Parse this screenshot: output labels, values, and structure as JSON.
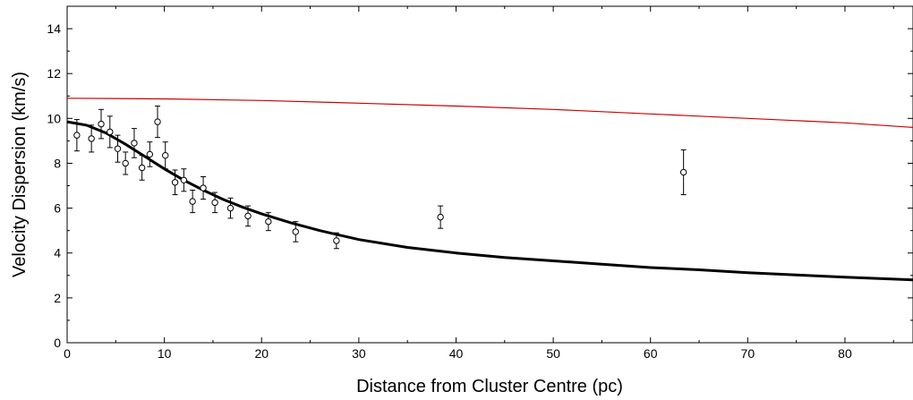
{
  "chart_data": {
    "type": "scatter",
    "title": "",
    "xlabel": "Distance from Cluster Centre (pc)",
    "ylabel": "Velocity Dispersion (km/s)",
    "xlim": [
      0,
      87
    ],
    "ylim": [
      0,
      15
    ],
    "xticks": [
      0,
      10,
      20,
      30,
      40,
      50,
      60,
      70,
      80
    ],
    "yticks": [
      0,
      2,
      4,
      6,
      8,
      10,
      12,
      14
    ],
    "grid": false,
    "legend": "none",
    "colors": {
      "points": "#000000",
      "black_curve": "#000000",
      "red_curve": "#cc0000"
    },
    "series": [
      {
        "kind": "points_with_errorbars",
        "x": [
          1.0,
          2.5,
          3.5,
          4.4,
          5.2,
          6.0,
          6.9,
          7.7,
          8.5,
          9.3,
          10.1,
          11.1,
          12.0,
          12.9,
          14.0,
          15.2,
          16.8,
          18.6,
          20.7,
          23.5,
          27.7,
          38.4,
          63.4
        ],
        "y": [
          9.25,
          9.1,
          9.75,
          9.4,
          8.65,
          8.0,
          8.9,
          7.8,
          8.4,
          9.85,
          8.35,
          7.15,
          7.25,
          6.3,
          6.9,
          6.25,
          6.0,
          5.65,
          5.4,
          4.95,
          4.55,
          5.6,
          7.6
        ],
        "err": [
          0.7,
          0.6,
          0.65,
          0.7,
          0.6,
          0.5,
          0.65,
          0.55,
          0.55,
          0.7,
          0.6,
          0.55,
          0.5,
          0.5,
          0.5,
          0.45,
          0.45,
          0.45,
          0.4,
          0.45,
          0.35,
          0.5,
          1.0
        ]
      },
      {
        "kind": "curve",
        "x": [
          0,
          2,
          4,
          6,
          8,
          10,
          12,
          14,
          16,
          18,
          20,
          23,
          26,
          30,
          35,
          40,
          45,
          50,
          55,
          60,
          65,
          70,
          75,
          80,
          87
        ],
        "y": [
          9.85,
          9.7,
          9.35,
          8.85,
          8.3,
          7.75,
          7.25,
          6.8,
          6.4,
          6.05,
          5.75,
          5.35,
          5.0,
          4.6,
          4.25,
          4.0,
          3.8,
          3.65,
          3.5,
          3.35,
          3.25,
          3.12,
          3.02,
          2.92,
          2.8
        ]
      },
      {
        "kind": "curve",
        "x": [
          0,
          10,
          20,
          30,
          40,
          50,
          60,
          70,
          80,
          87
        ],
        "y": [
          10.9,
          10.87,
          10.8,
          10.68,
          10.55,
          10.4,
          10.2,
          10.0,
          9.8,
          9.6
        ]
      }
    ]
  }
}
